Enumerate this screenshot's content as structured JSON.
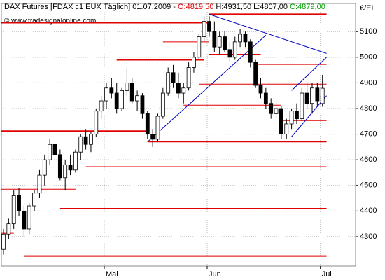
{
  "chart_data": {
    "type": "candlestick",
    "title": "DAX Futures [FDAX c1 EUX  Täglich] 01.07.2009 -",
    "ohlc_labels": [
      "O:4819,50",
      "H:4931,50",
      "L:4807,00",
      "C:4879,00"
    ],
    "ohlc_label_colors": [
      "#e00000",
      "#000000",
      "#000000",
      "#00a000"
    ],
    "watermark": "© www.tradesignalonline.com",
    "y_axis_label": "€/EL",
    "categories": [
      null,
      null,
      null,
      null,
      null,
      null,
      null,
      null,
      null,
      null,
      null,
      null,
      null,
      null,
      null,
      null,
      null,
      null,
      null,
      null,
      "Mai",
      null,
      null,
      null,
      null,
      null,
      null,
      null,
      null,
      null,
      null,
      null,
      null,
      null,
      null,
      null,
      null,
      null,
      null,
      null,
      "Jun",
      null,
      null,
      null,
      null,
      null,
      null,
      null,
      null,
      null,
      null,
      null,
      null,
      null,
      null,
      null,
      null,
      null,
      null,
      null,
      null,
      null,
      "Jul"
    ],
    "open": [
      4250,
      4310,
      4350,
      4460,
      4400,
      4330,
      4420,
      4470,
      4540,
      4600,
      4660,
      4620,
      4530,
      4580,
      4560,
      4630,
      4690,
      4660,
      4700,
      4790,
      4830,
      4880,
      4860,
      4800,
      4870,
      4900,
      4830,
      4850,
      4780,
      4700,
      4680,
      4770,
      4860,
      4940,
      4900,
      4860,
      4880,
      4960,
      5000,
      5080,
      5140,
      5100,
      5040,
      5080,
      5030,
      5000,
      5060,
      5090,
      5060,
      4980,
      4890,
      4860,
      4820,
      4780,
      4800,
      4700,
      4740,
      4790,
      4760,
      4860,
      4820,
      4880,
      4819.5
    ],
    "high": [
      4330,
      4370,
      4480,
      4490,
      4420,
      4430,
      4480,
      4560,
      4620,
      4680,
      4700,
      4640,
      4600,
      4620,
      4640,
      4700,
      4720,
      4710,
      4800,
      4850,
      4900,
      4920,
      4900,
      4880,
      4960,
      4920,
      4870,
      4860,
      4790,
      4720,
      4780,
      4880,
      4960,
      4970,
      4940,
      4900,
      4980,
      5020,
      5090,
      5160,
      5160,
      5140,
      5100,
      5100,
      5060,
      5080,
      5110,
      5100,
      5070,
      4990,
      4920,
      4880,
      4840,
      4830,
      4810,
      4760,
      4800,
      4820,
      4880,
      4900,
      4900,
      4900,
      4931.5
    ],
    "low": [
      4230,
      4290,
      4330,
      4380,
      4300,
      4310,
      4400,
      4450,
      4500,
      4580,
      4600,
      4520,
      4480,
      4540,
      4550,
      4600,
      4640,
      4630,
      4690,
      4760,
      4800,
      4840,
      4780,
      4790,
      4850,
      4820,
      4790,
      4760,
      4680,
      4650,
      4670,
      4760,
      4850,
      4880,
      4840,
      4820,
      4870,
      4940,
      4990,
      5060,
      5080,
      5020,
      5010,
      5020,
      4980,
      4990,
      5040,
      5040,
      4960,
      4880,
      4840,
      4800,
      4760,
      4760,
      4680,
      4680,
      4720,
      4740,
      4750,
      4800,
      4780,
      4810,
      4807
    ],
    "close": [
      4310,
      4350,
      4460,
      4400,
      4330,
      4420,
      4470,
      4540,
      4600,
      4660,
      4620,
      4530,
      4580,
      4560,
      4630,
      4690,
      4660,
      4700,
      4790,
      4830,
      4880,
      4860,
      4800,
      4870,
      4900,
      4830,
      4850,
      4780,
      4700,
      4680,
      4770,
      4860,
      4940,
      4900,
      4860,
      4880,
      4960,
      5000,
      5080,
      5140,
      5100,
      5040,
      5080,
      5030,
      5000,
      5060,
      5090,
      5060,
      4980,
      4890,
      4860,
      4820,
      4780,
      4800,
      4700,
      4740,
      4790,
      4760,
      4860,
      4820,
      4880,
      4830,
      4879
    ],
    "up_color": "#ffffff",
    "down_color": "#000000",
    "ylim": [
      4185,
      5210
    ],
    "yticks": [
      4300,
      4400,
      4500,
      4600,
      4700,
      4800,
      4900,
      5000,
      5100
    ],
    "grid": true,
    "levels": [
      {
        "price": 5168,
        "from": 40,
        "to": 62.8,
        "width": 2
      },
      {
        "price": 5135,
        "from": -0.5,
        "to": 40,
        "width": 2
      },
      {
        "price": 5060,
        "from": 31,
        "to": 40,
        "width": 1
      },
      {
        "price": 5012,
        "from": 40,
        "to": 50,
        "width": 1
      },
      {
        "price": 4990,
        "from": 22,
        "to": 39,
        "width": 2
      },
      {
        "price": 4972,
        "from": 49,
        "to": 62.8,
        "width": 1
      },
      {
        "price": 4895,
        "from": 38,
        "to": 62.8,
        "width": 1
      },
      {
        "price": 4813,
        "from": 35,
        "to": 54,
        "width": 1
      },
      {
        "price": 4753,
        "from": 54,
        "to": 62.8,
        "width": 1
      },
      {
        "price": 4712,
        "from": -0.5,
        "to": 28,
        "width": 2
      },
      {
        "price": 4671,
        "from": 28,
        "to": 62.8,
        "width": 2
      },
      {
        "price": 4573,
        "from": 16,
        "to": 62.8,
        "width": 1
      },
      {
        "price": 4485,
        "from": -0.5,
        "to": 14,
        "width": 1
      },
      {
        "price": 4409,
        "from": 11,
        "to": 62.8,
        "width": 2
      },
      {
        "price": 4313,
        "from": -0.5,
        "to": 2,
        "width": 1
      },
      {
        "price": 4223,
        "from": 4,
        "to": 62.8,
        "width": 1
      }
    ],
    "level_color": "#e00000",
    "trendlines": [
      {
        "x1": 28,
        "y1": 4670,
        "x2": 51,
        "y2": 5086
      },
      {
        "x1": 40,
        "y1": 5168,
        "x2": 62.8,
        "y2": 5015
      },
      {
        "x1": 56,
        "y1": 4690,
        "x2": 62.8,
        "y2": 4850
      },
      {
        "x1": 56,
        "y1": 4870,
        "x2": 62.8,
        "y2": 5000
      }
    ],
    "trendline_color": "#0000c0"
  }
}
